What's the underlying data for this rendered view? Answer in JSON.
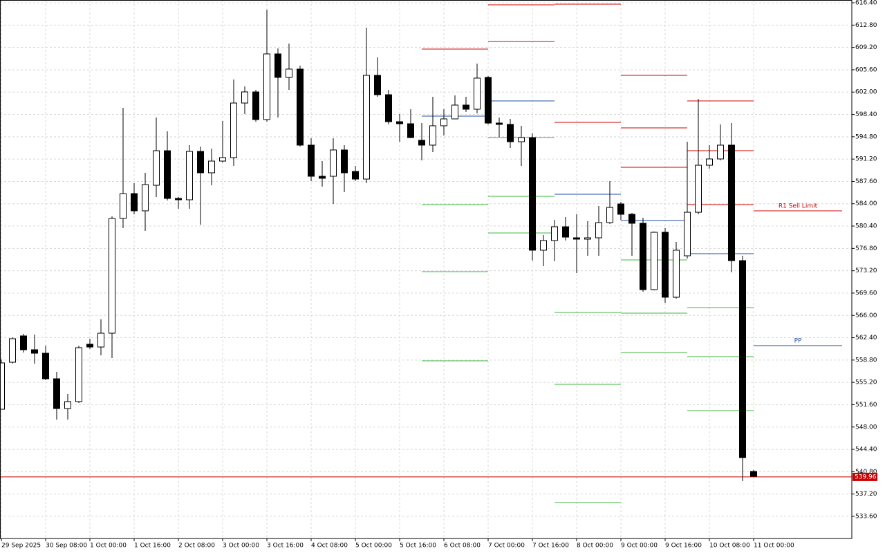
{
  "chart_data": {
    "type": "candlestick",
    "ylim": [
      530.03,
      616.85
    ],
    "yticks": [
      {
        "value": 616.4,
        "label": "616.40"
      },
      {
        "value": 612.8,
        "label": "612.80"
      },
      {
        "value": 609.2,
        "label": "609.20"
      },
      {
        "value": 605.6,
        "label": "605.60"
      },
      {
        "value": 602,
        "label": "602.00"
      },
      {
        "value": 598.4,
        "label": "598.40"
      },
      {
        "value": 594.8,
        "label": "594.80"
      },
      {
        "value": 591.2,
        "label": "591.20"
      },
      {
        "value": 587.6,
        "label": "587.60"
      },
      {
        "value": 584,
        "label": "584.00"
      },
      {
        "value": 580.4,
        "label": "580.40"
      },
      {
        "value": 576.8,
        "label": "576.80"
      },
      {
        "value": 573.2,
        "label": "573.20"
      },
      {
        "value": 569.6,
        "label": "569.60"
      },
      {
        "value": 566,
        "label": "566.00"
      },
      {
        "value": 562.4,
        "label": "562.40"
      },
      {
        "value": 558.8,
        "label": "558.80"
      },
      {
        "value": 555.2,
        "label": "555.20"
      },
      {
        "value": 551.6,
        "label": "551.60"
      },
      {
        "value": 548,
        "label": "548.00"
      },
      {
        "value": 544.4,
        "label": "544.40"
      },
      {
        "value": 540.8,
        "label": "540.80"
      },
      {
        "value": 537.2,
        "label": "537.20"
      },
      {
        "value": 533.6,
        "label": "533.60"
      }
    ],
    "grid": true,
    "categories": [
      "29 Sep 2025",
      null,
      null,
      null,
      "30 Sep 08:00",
      null,
      null,
      null,
      "1 Oct 00:00",
      null,
      null,
      null,
      "1 Oct 16:00",
      null,
      null,
      null,
      "2 Oct 08:00",
      null,
      null,
      null,
      "3 Oct 00:00",
      null,
      null,
      null,
      "3 Oct 16:00",
      null,
      null,
      null,
      "4 Oct 08:00",
      null,
      null,
      null,
      "5 Oct 00:00",
      null,
      null,
      null,
      "5 Oct 16:00",
      null,
      null,
      null,
      "6 Oct 08:00",
      null,
      null,
      null,
      "7 Oct 00:00",
      null,
      null,
      null,
      "7 Oct 16:00",
      null,
      null,
      null,
      "8 Oct 00:00",
      null,
      null,
      null,
      "9 Oct 00:00",
      null,
      null,
      null,
      "9 Oct 16:00",
      null,
      null,
      null,
      "10 Oct 08:00",
      null,
      null,
      null,
      "11 Oct 00:00"
    ],
    "open": [
      550.87,
      558.45,
      562.69,
      560.46,
      559.9,
      555.78,
      550.98,
      552.1,
      561.35,
      560.9,
      563.13,
      581.63,
      585.64,
      582.86,
      586.98,
      592.55,
      584.86,
      584.64,
      592.44,
      588.99,
      590.88,
      591.44,
      600.24,
      602.03,
      597.57,
      608.16,
      604.37,
      605.71,
      593.45,
      588.43,
      588.43,
      592.67,
      589.21,
      587.98,
      604.7,
      601.58,
      597.23,
      596.9,
      594.23,
      593.45,
      596.57,
      597.68,
      599.91,
      599.24,
      604.37,
      597.01,
      596.79,
      594.0,
      594.67,
      576.51,
      578.07,
      580.29,
      578.51,
      578.29,
      578.51,
      580.96,
      583.97,
      582.3,
      580.85,
      570.15,
      579.4,
      568.93,
      575.61,
      582.63,
      590.21,
      591.22,
      593.45,
      574.83,
      540.84
    ],
    "high": [
      558.9,
      562.46,
      563.02,
      562.91,
      561.12,
      556.89,
      553.32,
      561.12,
      562.24,
      565.36,
      581.97,
      599.46,
      587.32,
      588.99,
      597.9,
      595.67,
      585.09,
      593.45,
      593.22,
      592.89,
      597.35,
      604.03,
      602.92,
      602.36,
      615.29,
      609.05,
      609.83,
      606.26,
      594.56,
      590.88,
      594.56,
      593.45,
      590.1,
      612.39,
      607.6,
      602.36,
      598.46,
      599.24,
      597.01,
      601.25,
      599.24,
      601.47,
      601.25,
      606.6,
      604.59,
      597.9,
      597.68,
      596.57,
      595.34,
      578.96,
      581.41,
      581.85,
      582.3,
      581.19,
      583.64,
      587.65,
      584.31,
      582.52,
      581.74,
      579.51,
      580.07,
      577.84,
      594.0,
      600.91,
      593.45,
      596.79,
      597.01,
      575.61,
      541.06
    ],
    "low": [
      550.87,
      558.23,
      560.01,
      558.23,
      555.55,
      549.2,
      549.2,
      551.87,
      560.57,
      559.56,
      559.12,
      580.07,
      582.3,
      579.63,
      585.09,
      584.53,
      583.19,
      583.19,
      580.63,
      586.98,
      590.66,
      590.1,
      598.46,
      597.23,
      597.23,
      597.9,
      602.36,
      593.22,
      587.65,
      586.76,
      583.97,
      585.87,
      587.65,
      587.32,
      601.25,
      596.79,
      594.0,
      594.56,
      590.99,
      592.33,
      595.01,
      597.68,
      598.8,
      598.57,
      596.79,
      594.78,
      593.0,
      590.1,
      574.83,
      573.94,
      574.72,
      578.07,
      572.83,
      575.61,
      575.61,
      580.74,
      581.41,
      575.61,
      569.82,
      570.04,
      568.04,
      568.7,
      575.17,
      582.3,
      589.66,
      590.99,
      572.94,
      539.28,
      539.95
    ],
    "close": [
      558.34,
      562.24,
      560.46,
      559.9,
      555.78,
      550.98,
      552.1,
      560.79,
      560.9,
      563.13,
      581.63,
      585.64,
      582.86,
      587.09,
      592.55,
      584.86,
      584.64,
      592.44,
      588.99,
      590.88,
      591.44,
      600.24,
      602.03,
      597.57,
      608.16,
      604.37,
      605.71,
      593.45,
      588.43,
      588.1,
      592.67,
      588.99,
      587.98,
      604.7,
      601.58,
      597.23,
      596.9,
      594.67,
      593.45,
      596.57,
      597.68,
      599.91,
      599.24,
      604.26,
      597.01,
      596.79,
      594.0,
      594.67,
      576.51,
      578.07,
      580.29,
      578.62,
      578.29,
      578.51,
      580.96,
      583.41,
      582.3,
      580.85,
      570.15,
      579.4,
      568.93,
      576.51,
      582.63,
      590.21,
      591.22,
      593.45,
      574.83,
      543.07,
      540.06
    ],
    "up_color": "#ffffff",
    "down_color": "#000000",
    "current_price": 539.96,
    "current_price_color": "#cc0000",
    "levels": [
      {
        "from": 38,
        "to": 44,
        "value": 608.94,
        "color": "#d00000"
      },
      {
        "from": 38,
        "to": 44,
        "value": 598.13,
        "color": "#1f4fa0"
      },
      {
        "from": 38,
        "to": 44,
        "value": 583.86,
        "color": "#3cb83c"
      },
      {
        "from": 38,
        "to": 44,
        "value": 573.05,
        "color": "#3cb83c"
      },
      {
        "from": 38,
        "to": 44,
        "value": 558.67,
        "color": "#3cb83c"
      },
      {
        "from": 44,
        "to": 50,
        "value": 616.07,
        "color": "#d00000"
      },
      {
        "from": 44,
        "to": 50,
        "value": 610.16,
        "color": "#d00000"
      },
      {
        "from": 44,
        "to": 50,
        "value": 600.58,
        "color": "#1f4fa0"
      },
      {
        "from": 44,
        "to": 50,
        "value": 594.67,
        "color": "#3cb83c"
      },
      {
        "from": 44,
        "to": 50,
        "value": 585.2,
        "color": "#3cb83c"
      },
      {
        "from": 44,
        "to": 50,
        "value": 579.29,
        "color": "#3cb83c"
      },
      {
        "from": 50,
        "to": 56,
        "value": 616.18,
        "color": "#d00000"
      },
      {
        "from": 50,
        "to": 56,
        "value": 597.12,
        "color": "#d00000"
      },
      {
        "from": 50,
        "to": 56,
        "value": 585.53,
        "color": "#1f4fa0"
      },
      {
        "from": 50,
        "to": 56,
        "value": 566.47,
        "color": "#3cb83c"
      },
      {
        "from": 50,
        "to": 56,
        "value": 554.88,
        "color": "#3cb83c"
      },
      {
        "from": 50,
        "to": 56,
        "value": 535.83,
        "color": "#3cb83c"
      },
      {
        "from": 56,
        "to": 62,
        "value": 604.7,
        "color": "#d00000"
      },
      {
        "from": 56,
        "to": 62,
        "value": 596.23,
        "color": "#d00000"
      },
      {
        "from": 56,
        "to": 62,
        "value": 589.88,
        "color": "#d00000"
      },
      {
        "from": 56,
        "to": 62,
        "value": 581.3,
        "color": "#1f4fa0"
      },
      {
        "from": 56,
        "to": 62,
        "value": 574.95,
        "color": "#3cb83c"
      },
      {
        "from": 56,
        "to": 62,
        "value": 566.36,
        "color": "#3cb83c"
      },
      {
        "from": 56,
        "to": 62,
        "value": 560.01,
        "color": "#3cb83c"
      },
      {
        "from": 62,
        "to": 68,
        "value": 600.58,
        "color": "#d00000"
      },
      {
        "from": 62,
        "to": 68,
        "value": 592.55,
        "color": "#d00000"
      },
      {
        "from": 62,
        "to": 68,
        "value": 583.86,
        "color": "#d00000"
      },
      {
        "from": 62,
        "to": 68,
        "value": 575.95,
        "color": "#1f4fa0"
      },
      {
        "from": 62,
        "to": 68,
        "value": 567.25,
        "color": "#3cb83c"
      },
      {
        "from": 62,
        "to": 68,
        "value": 559.34,
        "color": "#3cb83c"
      },
      {
        "from": 62,
        "to": 68,
        "value": 550.65,
        "color": "#3cb83c"
      },
      {
        "from": 68,
        "to": 76,
        "value": 582.86,
        "color": "#d00000",
        "label": "R1 Sell Limit"
      },
      {
        "from": 68,
        "to": 76,
        "value": 561.12,
        "color": "#1f4fa0",
        "label": "PP"
      }
    ]
  }
}
